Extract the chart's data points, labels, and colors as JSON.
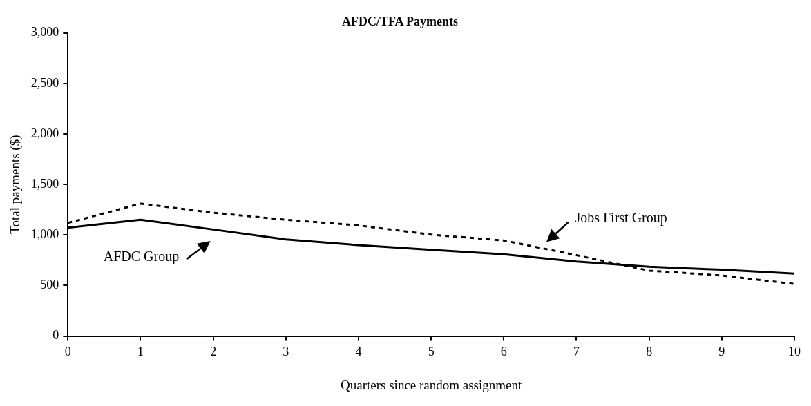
{
  "chart_data": {
    "type": "line",
    "title": "AFDC/TFA Payments",
    "xlabel": "Quarters since random assignment",
    "ylabel": "Total payments ($)",
    "x": [
      0,
      1,
      2,
      3,
      4,
      5,
      6,
      7,
      8,
      9,
      10
    ],
    "xlim": [
      0,
      10
    ],
    "xticks": [
      0,
      1,
      2,
      3,
      4,
      5,
      6,
      7,
      8,
      9,
      10
    ],
    "ylim": [
      0,
      3000
    ],
    "yticks": [
      0,
      500,
      {
        "value": 1000,
        "label": "1,000"
      },
      {
        "value": 1500,
        "label": "1,500"
      },
      {
        "value": 2000,
        "label": "2,000"
      },
      {
        "value": 2500,
        "label": "2,500"
      },
      {
        "value": 3000,
        "label": "3,000"
      }
    ],
    "grid": false,
    "marker": "none",
    "series": [
      {
        "name": "AFDC Group",
        "color": "#000000",
        "line_style": "solid",
        "values": [
          1072,
          1150,
          1054,
          955,
          899,
          854,
          809,
          737,
          686,
          656,
          617
        ]
      },
      {
        "name": "Jobs First Group",
        "color": "#000000",
        "line_style": "dashed",
        "values": [
          1119,
          1310,
          1220,
          1150,
          1095,
          1003,
          945,
          800,
          647,
          599,
          515
        ]
      }
    ]
  }
}
